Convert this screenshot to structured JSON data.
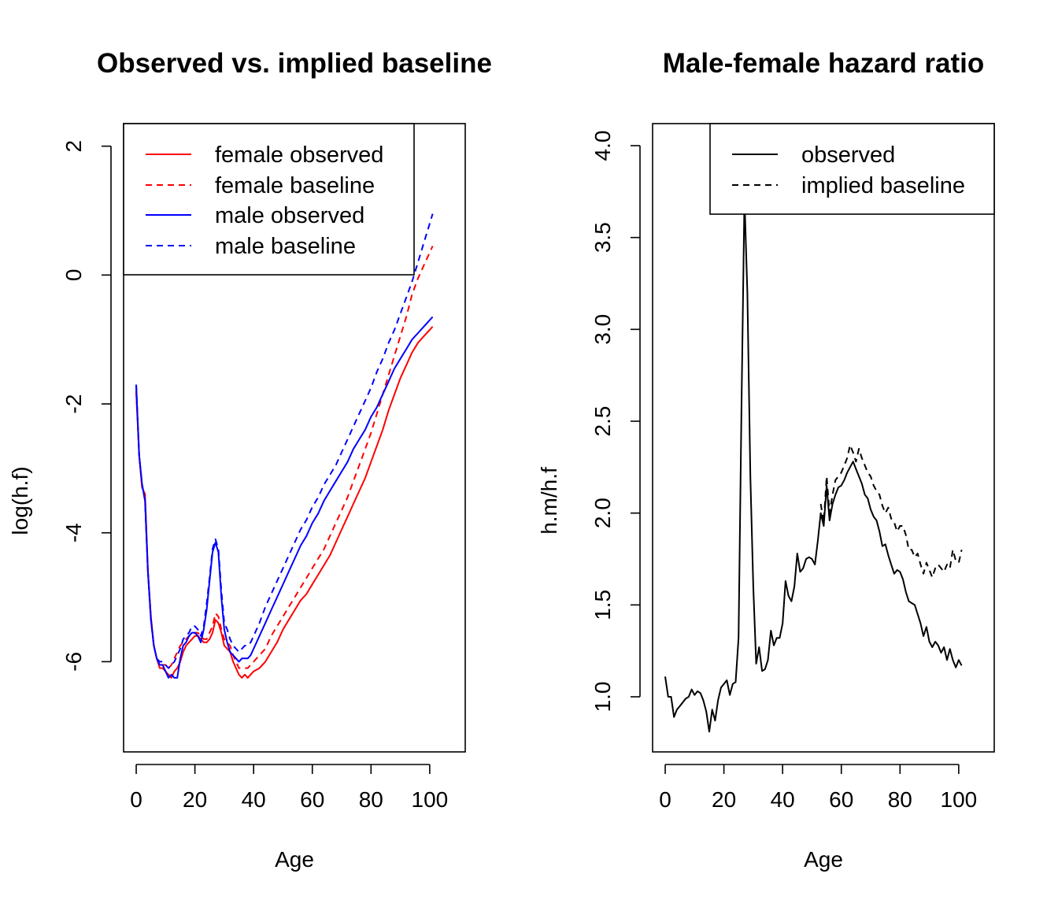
{
  "chart_data": [
    {
      "type": "line",
      "title": "Observed vs. implied baseline",
      "xlabel": "Age",
      "ylabel": "log(h.f)",
      "xlim": [
        -4.3,
        112.1
      ],
      "ylim": [
        -7.4,
        2.35
      ],
      "xticks": [
        0,
        20,
        40,
        60,
        80,
        100
      ],
      "yticks": [
        -6,
        -4,
        -2,
        0,
        2
      ],
      "legend_position": "top-left",
      "colors": {
        "female": "#ff0000",
        "male": "#0000ff",
        "axis": "#000000"
      },
      "series": [
        {
          "name": "female observed",
          "color": "#ff0000",
          "dash": "solid",
          "x": [
            0,
            1,
            2,
            3,
            4,
            5,
            6,
            7,
            8,
            9,
            10,
            11,
            12,
            13,
            14,
            15,
            16,
            17,
            18,
            19,
            20,
            21,
            22,
            23,
            24,
            25,
            26,
            27,
            28,
            29,
            30,
            31,
            32,
            33,
            34,
            35,
            36,
            37,
            38,
            39,
            40,
            42,
            44,
            46,
            48,
            50,
            52,
            54,
            56,
            58,
            60,
            62,
            64,
            66,
            68,
            70,
            72,
            74,
            76,
            78,
            80,
            82,
            84,
            86,
            88,
            90,
            92,
            94,
            96,
            98,
            100,
            101
          ],
          "y": [
            -1.8,
            -2.8,
            -3.3,
            -3.4,
            -4.6,
            -5.3,
            -5.75,
            -5.95,
            -6.1,
            -6.1,
            -6.15,
            -6.2,
            -6.25,
            -6.15,
            -6.1,
            -6.0,
            -5.85,
            -5.75,
            -5.7,
            -5.65,
            -5.6,
            -5.6,
            -5.65,
            -5.7,
            -5.7,
            -5.65,
            -5.55,
            -5.35,
            -5.4,
            -5.55,
            -5.75,
            -5.8,
            -5.85,
            -6.0,
            -6.1,
            -6.2,
            -6.25,
            -6.2,
            -6.25,
            -6.2,
            -6.15,
            -6.1,
            -6.0,
            -5.85,
            -5.7,
            -5.5,
            -5.35,
            -5.2,
            -5.05,
            -4.95,
            -4.8,
            -4.65,
            -4.5,
            -4.35,
            -4.15,
            -3.95,
            -3.75,
            -3.55,
            -3.35,
            -3.15,
            -2.9,
            -2.65,
            -2.4,
            -2.1,
            -1.85,
            -1.6,
            -1.4,
            -1.2,
            -1.05,
            -0.95,
            -0.85,
            -0.8
          ]
        },
        {
          "name": "female baseline",
          "color": "#ff0000",
          "dash": "dashed",
          "x": [
            0,
            1,
            2,
            3,
            4,
            5,
            6,
            7,
            8,
            9,
            10,
            11,
            12,
            13,
            14,
            15,
            16,
            17,
            18,
            19,
            20,
            21,
            22,
            23,
            24,
            25,
            26,
            27,
            28,
            29,
            30,
            31,
            32,
            33,
            34,
            35,
            36,
            37,
            38,
            39,
            40,
            42,
            44,
            46,
            48,
            50,
            52,
            54,
            56,
            58,
            60,
            62,
            64,
            66,
            68,
            70,
            72,
            74,
            76,
            78,
            80,
            82,
            84,
            86,
            88,
            90,
            92,
            94,
            96,
            98,
            100,
            101
          ],
          "y": [
            -1.8,
            -2.8,
            -3.3,
            -3.4,
            -4.6,
            -5.3,
            -5.75,
            -5.95,
            -6.05,
            -6.05,
            -6.05,
            -6.1,
            -6.05,
            -5.95,
            -5.85,
            -5.75,
            -5.7,
            -5.65,
            -5.6,
            -5.6,
            -5.55,
            -5.55,
            -5.6,
            -5.65,
            -5.65,
            -5.55,
            -5.45,
            -5.25,
            -5.3,
            -5.5,
            -5.65,
            -5.7,
            -5.75,
            -5.9,
            -6.0,
            -6.1,
            -6.1,
            -6.1,
            -6.1,
            -6.05,
            -6.0,
            -5.9,
            -5.8,
            -5.6,
            -5.45,
            -5.3,
            -5.15,
            -5.0,
            -4.85,
            -4.7,
            -4.55,
            -4.4,
            -4.25,
            -4.05,
            -3.85,
            -3.65,
            -3.45,
            -3.2,
            -2.95,
            -2.7,
            -2.45,
            -2.15,
            -1.85,
            -1.55,
            -1.25,
            -0.95,
            -0.65,
            -0.3,
            -0.05,
            0.15,
            0.35,
            0.45
          ]
        },
        {
          "name": "male observed",
          "color": "#0000ff",
          "dash": "solid",
          "x": [
            0,
            1,
            2,
            3,
            4,
            5,
            6,
            7,
            8,
            9,
            10,
            11,
            12,
            13,
            14,
            15,
            16,
            17,
            18,
            19,
            20,
            21,
            22,
            23,
            24,
            25,
            26,
            27,
            28,
            29,
            30,
            31,
            32,
            33,
            34,
            35,
            36,
            37,
            38,
            39,
            40,
            42,
            44,
            46,
            48,
            50,
            52,
            54,
            56,
            58,
            60,
            62,
            64,
            66,
            68,
            70,
            72,
            74,
            76,
            78,
            80,
            82,
            84,
            86,
            88,
            90,
            92,
            94,
            96,
            98,
            100,
            101
          ],
          "y": [
            -1.7,
            -2.8,
            -3.25,
            -3.5,
            -4.6,
            -5.35,
            -5.75,
            -5.95,
            -6.05,
            -6.05,
            -6.15,
            -6.25,
            -6.2,
            -6.25,
            -6.25,
            -5.95,
            -5.75,
            -5.7,
            -5.6,
            -5.55,
            -5.55,
            -5.6,
            -5.7,
            -5.5,
            -5.2,
            -4.75,
            -4.3,
            -4.15,
            -4.3,
            -5.0,
            -5.5,
            -5.7,
            -5.85,
            -5.9,
            -5.95,
            -6.0,
            -5.95,
            -5.95,
            -5.95,
            -5.9,
            -5.8,
            -5.6,
            -5.4,
            -5.2,
            -5.0,
            -4.8,
            -4.6,
            -4.4,
            -4.2,
            -4.05,
            -3.85,
            -3.7,
            -3.5,
            -3.35,
            -3.2,
            -3.05,
            -2.9,
            -2.7,
            -2.55,
            -2.4,
            -2.2,
            -2.05,
            -1.85,
            -1.65,
            -1.45,
            -1.3,
            -1.15,
            -1.0,
            -0.9,
            -0.8,
            -0.7,
            -0.65
          ]
        },
        {
          "name": "male baseline",
          "color": "#0000ff",
          "dash": "dashed",
          "x": [
            0,
            1,
            2,
            3,
            4,
            5,
            6,
            7,
            8,
            9,
            10,
            11,
            12,
            13,
            14,
            15,
            16,
            17,
            18,
            19,
            20,
            21,
            22,
            23,
            24,
            25,
            26,
            27,
            28,
            29,
            30,
            31,
            32,
            33,
            34,
            35,
            36,
            37,
            38,
            39,
            40,
            42,
            44,
            46,
            48,
            50,
            52,
            54,
            56,
            58,
            60,
            62,
            64,
            66,
            68,
            70,
            72,
            74,
            76,
            78,
            80,
            82,
            84,
            86,
            88,
            90,
            92,
            94,
            96,
            98,
            100,
            101
          ],
          "y": [
            -1.7,
            -2.8,
            -3.25,
            -3.5,
            -4.6,
            -5.35,
            -5.75,
            -5.95,
            -6.0,
            -6.0,
            -6.05,
            -6.1,
            -6.05,
            -6.0,
            -5.9,
            -5.8,
            -5.65,
            -5.6,
            -5.55,
            -5.45,
            -5.45,
            -5.5,
            -5.6,
            -5.45,
            -5.1,
            -4.7,
            -4.25,
            -4.1,
            -4.25,
            -4.9,
            -5.4,
            -5.5,
            -5.65,
            -5.75,
            -5.8,
            -5.85,
            -5.8,
            -5.75,
            -5.75,
            -5.7,
            -5.6,
            -5.4,
            -5.15,
            -4.95,
            -4.75,
            -4.55,
            -4.35,
            -4.15,
            -3.95,
            -3.8,
            -3.6,
            -3.45,
            -3.25,
            -3.1,
            -2.95,
            -2.75,
            -2.55,
            -2.35,
            -2.15,
            -1.95,
            -1.75,
            -1.5,
            -1.3,
            -1.05,
            -0.85,
            -0.6,
            -0.35,
            -0.1,
            0.2,
            0.5,
            0.8,
            0.95
          ]
        }
      ]
    },
    {
      "type": "line",
      "title": "Male-female hazard ratio",
      "xlabel": "Age",
      "ylabel": "h.m/h.f",
      "xlim": [
        -4.3,
        112.1
      ],
      "ylim": [
        0.7,
        4.12
      ],
      "xticks": [
        0,
        20,
        40,
        60,
        80,
        100
      ],
      "yticks": [
        1.0,
        1.5,
        2.0,
        2.5,
        3.0,
        3.5,
        4.0
      ],
      "ytick_labels": [
        "1.0",
        "1.5",
        "2.0",
        "2.5",
        "3.0",
        "3.5",
        "4.0"
      ],
      "legend_position": "top-right",
      "colors": {
        "line": "#000000",
        "axis": "#000000"
      },
      "series": [
        {
          "name": "observed",
          "color": "#000000",
          "dash": "solid",
          "x": [
            0,
            1,
            2,
            3,
            4,
            5,
            6,
            7,
            8,
            9,
            10,
            11,
            12,
            13,
            14,
            15,
            16,
            17,
            18,
            19,
            20,
            21,
            22,
            23,
            24,
            25,
            26,
            27,
            28,
            29,
            30,
            31,
            32,
            33,
            34,
            35,
            36,
            37,
            38,
            39,
            40,
            41,
            42,
            43,
            44,
            45,
            46,
            47,
            48,
            49,
            50,
            51,
            52,
            53,
            54,
            55,
            56,
            57,
            58,
            59,
            60,
            61,
            62,
            63,
            64,
            65,
            66,
            67,
            68,
            69,
            70,
            71,
            72,
            73,
            74,
            75,
            76,
            77,
            78,
            79,
            80,
            81,
            82,
            83,
            84,
            85,
            86,
            87,
            88,
            89,
            90,
            91,
            92,
            93,
            94,
            95,
            96,
            97,
            98,
            99,
            100,
            101
          ],
          "y": [
            1.11,
            1.0,
            1.0,
            0.89,
            0.93,
            0.95,
            0.97,
            0.99,
            1.0,
            1.04,
            1.01,
            1.03,
            1.02,
            0.98,
            0.92,
            0.81,
            0.93,
            0.87,
            0.98,
            1.05,
            1.07,
            1.09,
            1.01,
            1.07,
            1.08,
            1.32,
            2.6,
            3.72,
            3.2,
            2.2,
            1.6,
            1.18,
            1.27,
            1.14,
            1.15,
            1.2,
            1.36,
            1.28,
            1.32,
            1.32,
            1.4,
            1.63,
            1.55,
            1.52,
            1.6,
            1.78,
            1.68,
            1.7,
            1.75,
            1.76,
            1.75,
            1.72,
            1.85,
            2.0,
            1.93,
            2.15,
            1.96,
            2.05,
            2.1,
            2.14,
            2.15,
            2.18,
            2.22,
            2.25,
            2.28,
            2.24,
            2.2,
            2.16,
            2.1,
            2.08,
            2.02,
            1.98,
            1.96,
            1.9,
            1.82,
            1.83,
            1.77,
            1.72,
            1.67,
            1.69,
            1.68,
            1.64,
            1.57,
            1.52,
            1.51,
            1.5,
            1.45,
            1.4,
            1.33,
            1.38,
            1.3,
            1.27,
            1.3,
            1.28,
            1.24,
            1.27,
            1.2,
            1.26,
            1.2,
            1.16,
            1.2,
            1.17
          ]
        },
        {
          "name": "implied baseline",
          "color": "#000000",
          "dash": "dashed",
          "x": [
            53,
            54,
            55,
            56,
            57,
            58,
            59,
            60,
            61,
            62,
            63,
            64,
            65,
            66,
            67,
            68,
            69,
            70,
            71,
            72,
            73,
            74,
            75,
            76,
            77,
            78,
            79,
            80,
            81,
            82,
            83,
            84,
            85,
            86,
            87,
            88,
            89,
            90,
            91,
            92,
            93,
            94,
            95,
            96,
            97,
            98,
            99,
            100,
            101
          ],
          "y": [
            2.05,
            1.95,
            2.2,
            2.0,
            2.1,
            2.18,
            2.2,
            2.22,
            2.26,
            2.3,
            2.37,
            2.33,
            2.28,
            2.35,
            2.3,
            2.26,
            2.22,
            2.2,
            2.15,
            2.12,
            2.1,
            2.04,
            2.0,
            2.03,
            1.97,
            1.95,
            1.9,
            1.93,
            1.93,
            1.88,
            1.8,
            1.8,
            1.76,
            1.78,
            1.72,
            1.67,
            1.73,
            1.69,
            1.65,
            1.7,
            1.72,
            1.7,
            1.68,
            1.72,
            1.7,
            1.8,
            1.74,
            1.73,
            1.8
          ]
        }
      ]
    }
  ]
}
